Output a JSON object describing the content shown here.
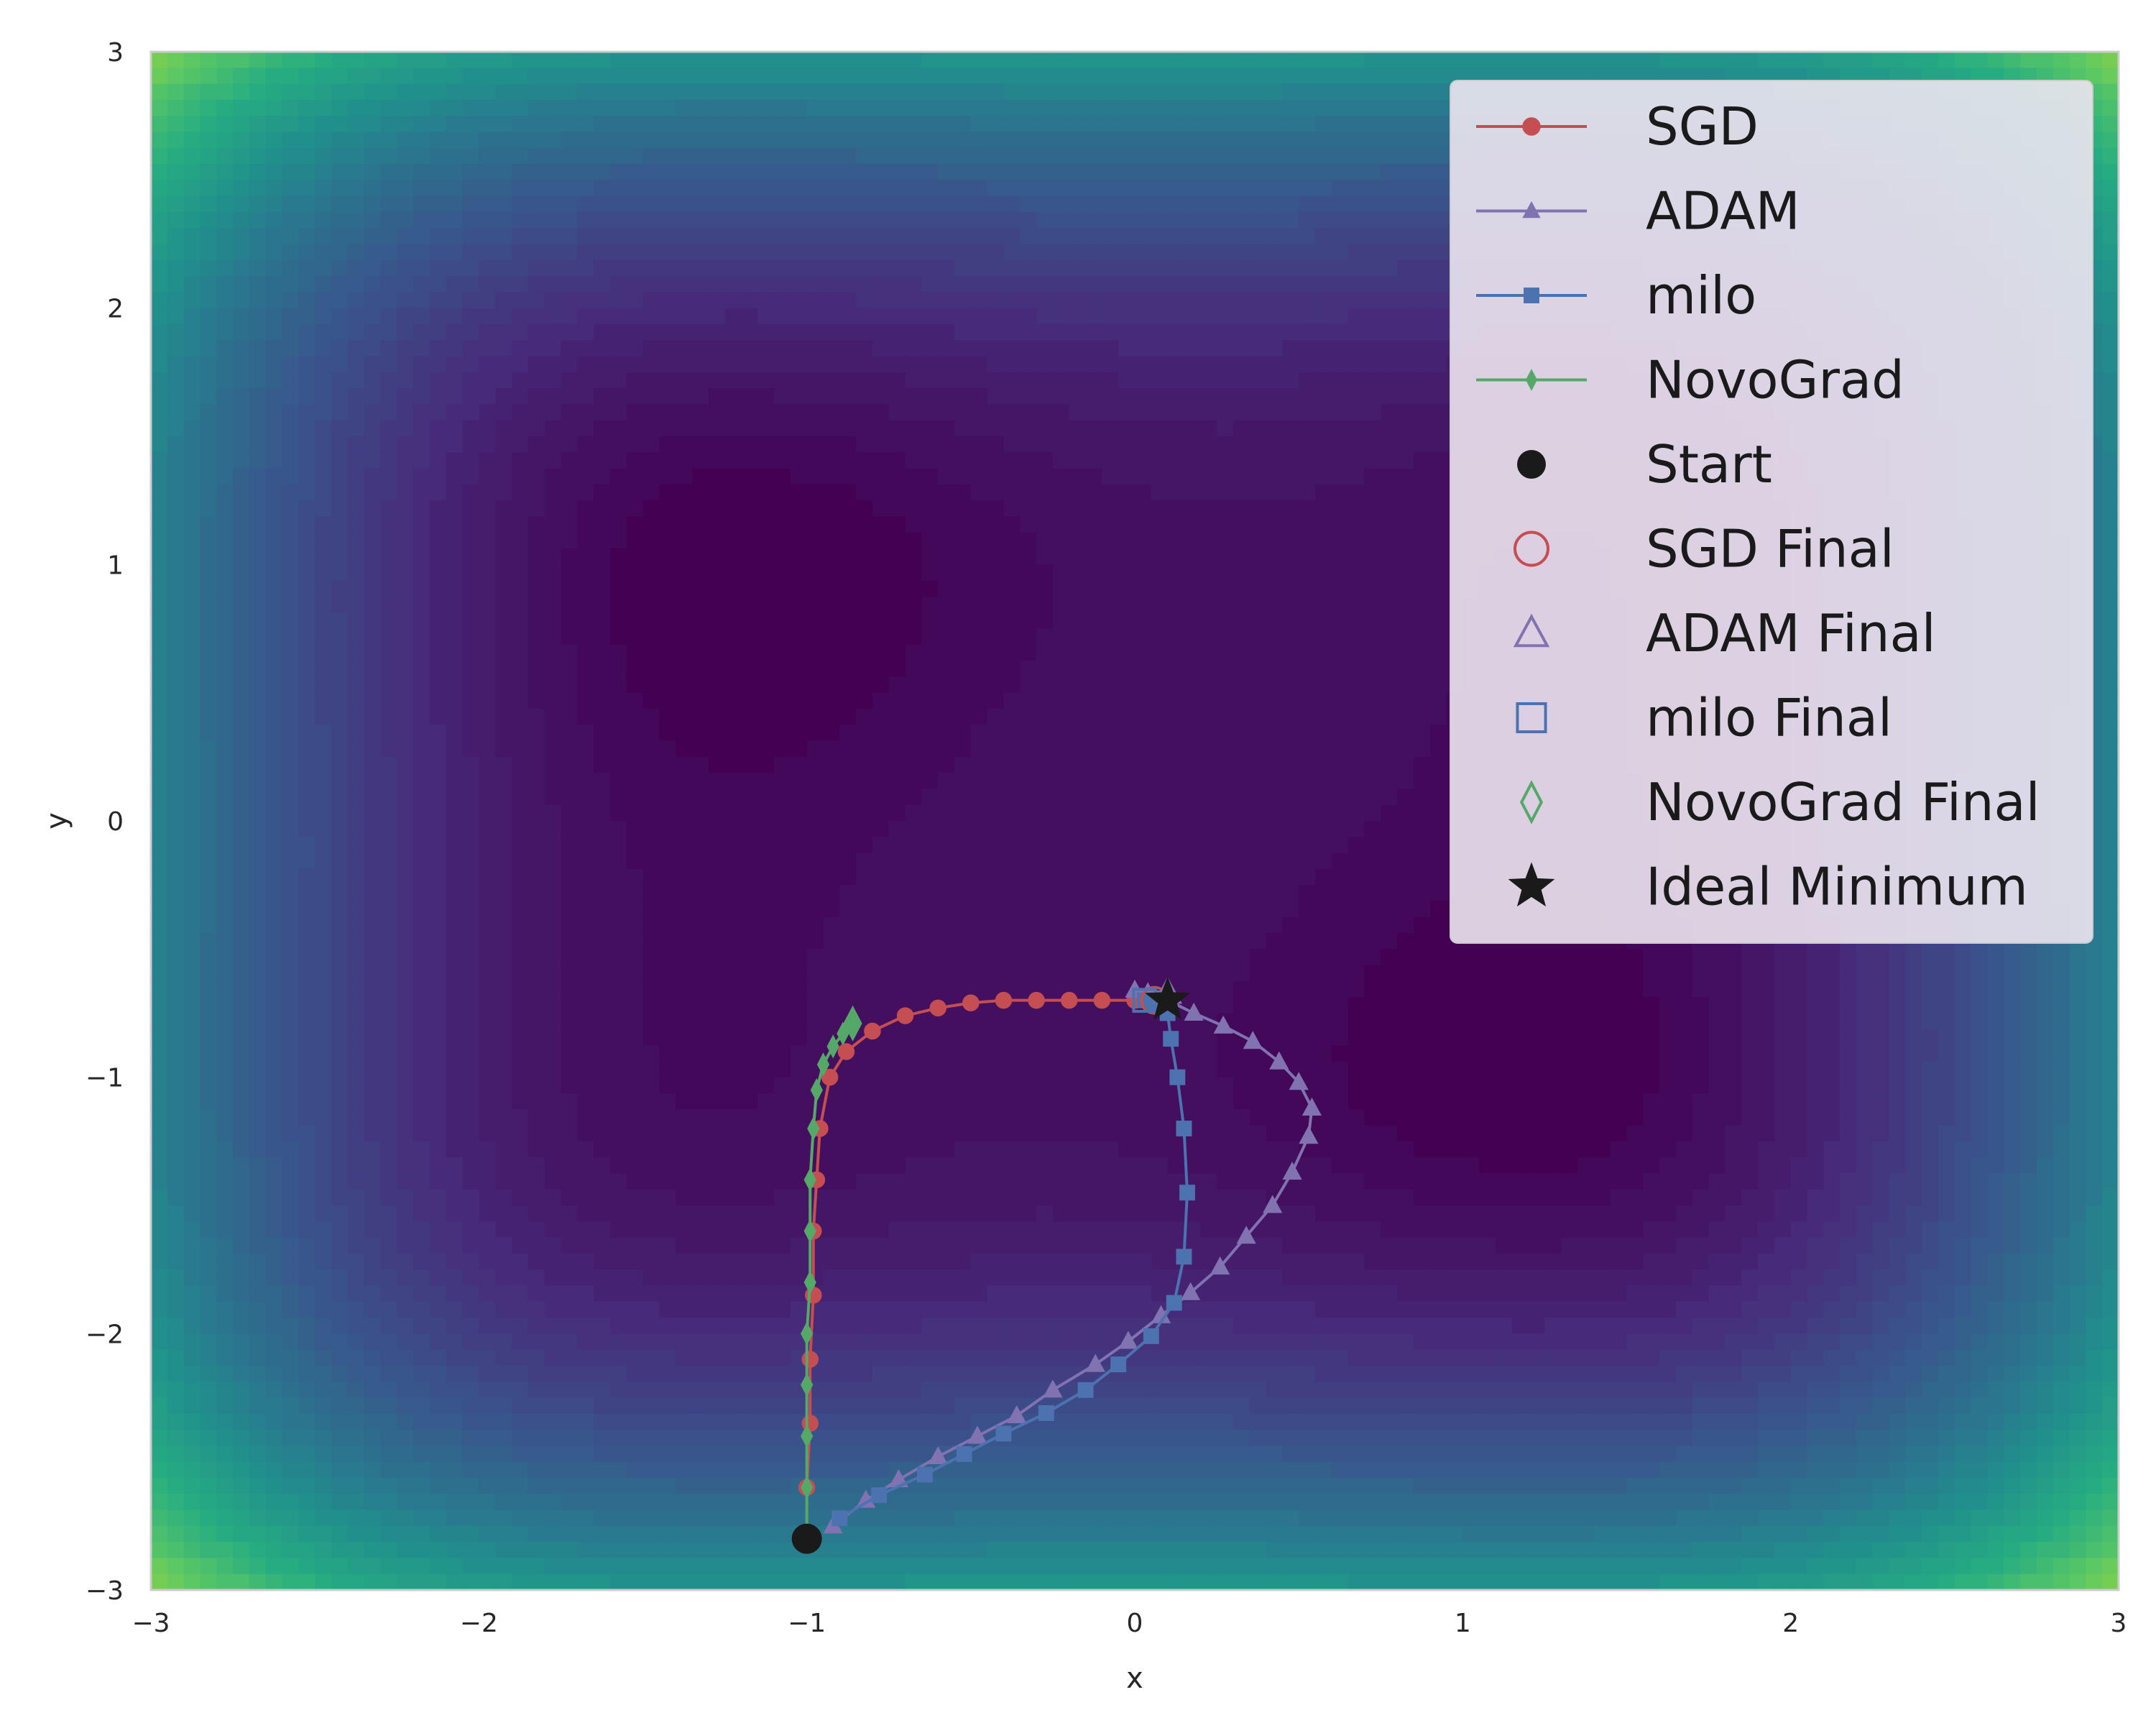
{
  "chart_data": {
    "type": "line",
    "title": "",
    "xlabel": "x",
    "ylabel": "y",
    "xlim": [
      -3,
      3
    ],
    "ylim": [
      -3,
      3
    ],
    "xticks": [
      -3,
      -2,
      -1,
      0,
      1,
      2,
      3
    ],
    "yticks": [
      -3,
      -2,
      -1,
      0,
      1,
      2,
      3
    ],
    "xtick_labels": [
      "−3",
      "−2",
      "−1",
      "0",
      "1",
      "2",
      "3"
    ],
    "ytick_labels": [
      "−3",
      "−2",
      "−1",
      "0",
      "1",
      "2",
      "3"
    ],
    "grid": false,
    "legend_position": "top-right",
    "background": "filled contour (viridis) of a loss surface",
    "colors": {
      "SGD": "#c44e52",
      "ADAM": "#8172b2",
      "milo": "#4c72b0",
      "NovoGrad": "#55a868",
      "Start": "#1a1a1a",
      "Ideal": "#1a1a1a"
    },
    "series": [
      {
        "name": "SGD",
        "marker": "circle",
        "color": "#c44e52",
        "points": [
          [
            -1.0,
            -2.8
          ],
          [
            -1.0,
            -2.6
          ],
          [
            -0.99,
            -2.35
          ],
          [
            -0.99,
            -2.1
          ],
          [
            -0.98,
            -1.85
          ],
          [
            -0.98,
            -1.6
          ],
          [
            -0.97,
            -1.4
          ],
          [
            -0.96,
            -1.2
          ],
          [
            -0.93,
            -1.0
          ],
          [
            -0.88,
            -0.9
          ],
          [
            -0.8,
            -0.82
          ],
          [
            -0.7,
            -0.76
          ],
          [
            -0.6,
            -0.73
          ],
          [
            -0.5,
            -0.71
          ],
          [
            -0.4,
            -0.7
          ],
          [
            -0.3,
            -0.7
          ],
          [
            -0.2,
            -0.7
          ],
          [
            -0.1,
            -0.7
          ],
          [
            0.0,
            -0.7
          ],
          [
            0.06,
            -0.7
          ]
        ]
      },
      {
        "name": "ADAM",
        "marker": "triangle",
        "color": "#8172b2",
        "points": [
          [
            -0.92,
            -2.75
          ],
          [
            -0.82,
            -2.65
          ],
          [
            -0.72,
            -2.57
          ],
          [
            -0.6,
            -2.48
          ],
          [
            -0.48,
            -2.4
          ],
          [
            -0.36,
            -2.32
          ],
          [
            -0.25,
            -2.22
          ],
          [
            -0.12,
            -2.12
          ],
          [
            -0.02,
            -2.03
          ],
          [
            0.08,
            -1.93
          ],
          [
            0.17,
            -1.84
          ],
          [
            0.26,
            -1.74
          ],
          [
            0.34,
            -1.62
          ],
          [
            0.42,
            -1.5
          ],
          [
            0.48,
            -1.37
          ],
          [
            0.53,
            -1.23
          ],
          [
            0.54,
            -1.12
          ],
          [
            0.5,
            -1.02
          ],
          [
            0.44,
            -0.94
          ],
          [
            0.36,
            -0.86
          ],
          [
            0.27,
            -0.8
          ],
          [
            0.18,
            -0.75
          ],
          [
            0.1,
            -0.7
          ],
          [
            0.04,
            -0.67
          ],
          [
            0.0,
            -0.66
          ],
          [
            0.1,
            -0.67
          ]
        ]
      },
      {
        "name": "milo",
        "marker": "square",
        "color": "#4c72b0",
        "points": [
          [
            -0.9,
            -2.72
          ],
          [
            -0.78,
            -2.63
          ],
          [
            -0.64,
            -2.55
          ],
          [
            -0.52,
            -2.47
          ],
          [
            -0.4,
            -2.39
          ],
          [
            -0.27,
            -2.31
          ],
          [
            -0.15,
            -2.22
          ],
          [
            -0.05,
            -2.12
          ],
          [
            0.05,
            -2.01
          ],
          [
            0.12,
            -1.88
          ],
          [
            0.15,
            -1.7
          ],
          [
            0.16,
            -1.45
          ],
          [
            0.15,
            -1.2
          ],
          [
            0.13,
            -1.0
          ],
          [
            0.11,
            -0.85
          ],
          [
            0.1,
            -0.75
          ],
          [
            0.06,
            -0.71
          ],
          [
            0.03,
            -0.7
          ]
        ]
      },
      {
        "name": "NovoGrad",
        "marker": "thin_diamond",
        "color": "#55a868",
        "points": [
          [
            -1.0,
            -2.8
          ],
          [
            -1.0,
            -2.6
          ],
          [
            -1.0,
            -2.4
          ],
          [
            -1.0,
            -2.2
          ],
          [
            -1.0,
            -2.0
          ],
          [
            -0.99,
            -1.8
          ],
          [
            -0.99,
            -1.6
          ],
          [
            -0.99,
            -1.4
          ],
          [
            -0.98,
            -1.2
          ],
          [
            -0.97,
            -1.05
          ],
          [
            -0.95,
            -0.95
          ],
          [
            -0.92,
            -0.88
          ],
          [
            -0.89,
            -0.83
          ],
          [
            -0.86,
            -0.79
          ]
        ]
      }
    ],
    "finals": [
      {
        "name": "SGD Final",
        "x": 0.06,
        "y": -0.7,
        "marker": "circle-open",
        "color": "#c44e52"
      },
      {
        "name": "ADAM Final",
        "x": 0.1,
        "y": -0.67,
        "marker": "triangle-open",
        "color": "#8172b2"
      },
      {
        "name": "milo Final",
        "x": 0.03,
        "y": -0.7,
        "marker": "square-open",
        "color": "#4c72b0"
      },
      {
        "name": "NovoGrad Final",
        "x": -0.86,
        "y": -0.79,
        "marker": "diamond-open",
        "color": "#55a868"
      }
    ],
    "start": {
      "name": "Start",
      "x": -1.0,
      "y": -2.8
    },
    "ideal": {
      "name": "Ideal Minimum",
      "x": 0.1,
      "y": -0.7
    },
    "legend": [
      "SGD",
      "ADAM",
      "milo",
      "NovoGrad",
      "Start",
      "SGD Final",
      "ADAM Final",
      "milo Final",
      "NovoGrad Final",
      "Ideal Minimum"
    ]
  }
}
